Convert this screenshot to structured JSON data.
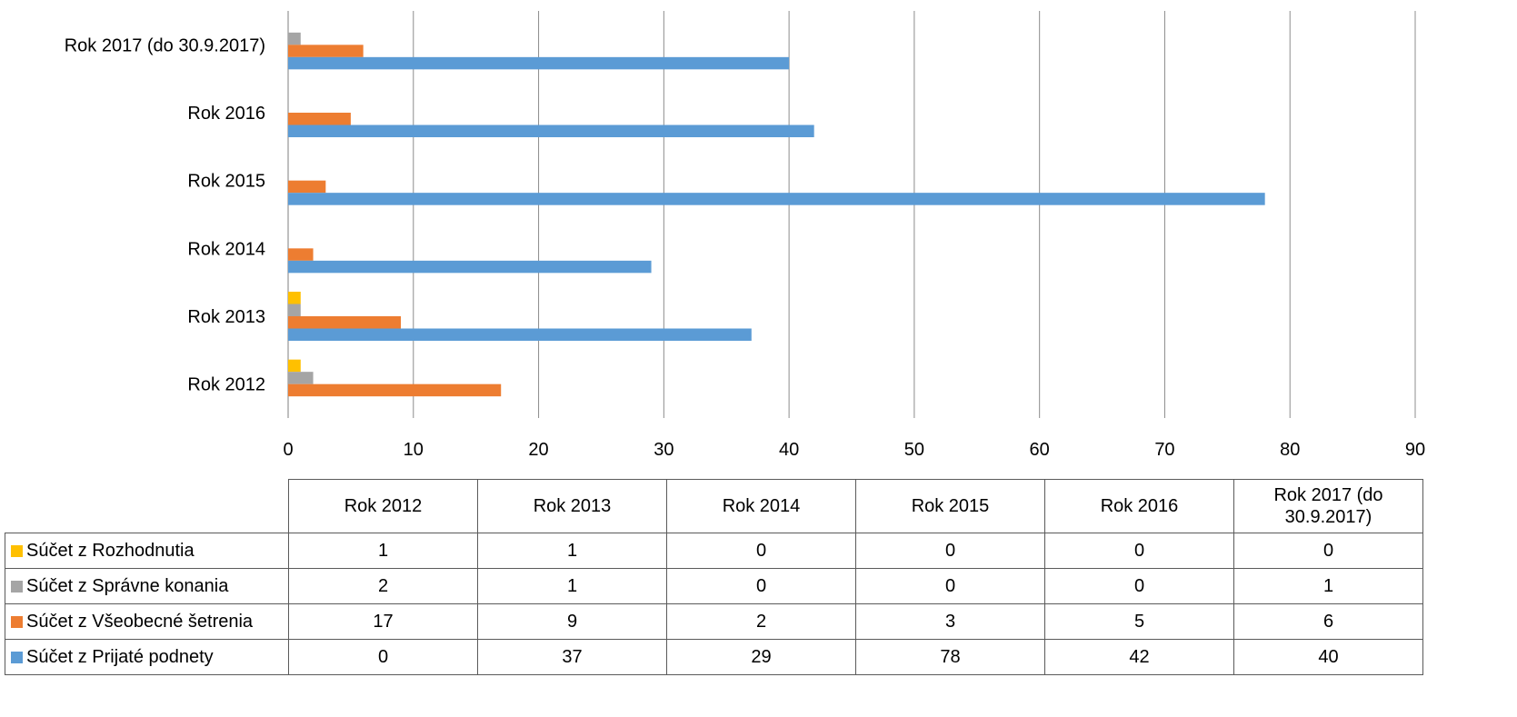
{
  "chart_data": {
    "type": "bar",
    "orientation": "horizontal",
    "categories": [
      "Rok 2012",
      "Rok 2013",
      "Rok 2014",
      "Rok 2015",
      "Rok 2016",
      "Rok 2017 (do 30.9.2017)"
    ],
    "series": [
      {
        "name": "Súčet z Rozhodnutia",
        "color": "#FFC000",
        "values": [
          1,
          1,
          0,
          0,
          0,
          0
        ]
      },
      {
        "name": "Súčet z Správne konania",
        "color": "#A5A5A5",
        "values": [
          2,
          1,
          0,
          0,
          0,
          1
        ]
      },
      {
        "name": "Súčet z Všeobecné šetrenia",
        "color": "#ED7D31",
        "values": [
          17,
          9,
          2,
          3,
          5,
          6
        ]
      },
      {
        "name": "Súčet z Prijaté podnety",
        "color": "#5B9BD5",
        "values": [
          0,
          37,
          29,
          78,
          42,
          40
        ]
      }
    ],
    "xlim": [
      0,
      90
    ],
    "xticks": [
      "0",
      "10",
      "20",
      "30",
      "40",
      "50",
      "60",
      "70",
      "80",
      "90"
    ],
    "grid": true,
    "legend": "data table below chart"
  },
  "table": {
    "headers": [
      "Rok 2012",
      "Rok 2013",
      "Rok 2014",
      "Rok 2015",
      "Rok 2016",
      "Rok 2017 (do 30.9.2017)"
    ],
    "rows": [
      {
        "label": "Súčet z Rozhodnutia",
        "color": "#FFC000",
        "cells": [
          "1",
          "1",
          "0",
          "0",
          "0",
          "0"
        ]
      },
      {
        "label": "Súčet z Správne konania",
        "color": "#A5A5A5",
        "cells": [
          "2",
          "1",
          "0",
          "0",
          "0",
          "1"
        ]
      },
      {
        "label": "Súčet z Všeobecné šetrenia",
        "color": "#ED7D31",
        "cells": [
          "17",
          "9",
          "2",
          "3",
          "5",
          "6"
        ]
      },
      {
        "label": "Súčet z Prijaté podnety",
        "color": "#5B9BD5",
        "cells": [
          "0",
          "37",
          "29",
          "78",
          "42",
          "40"
        ]
      }
    ]
  }
}
